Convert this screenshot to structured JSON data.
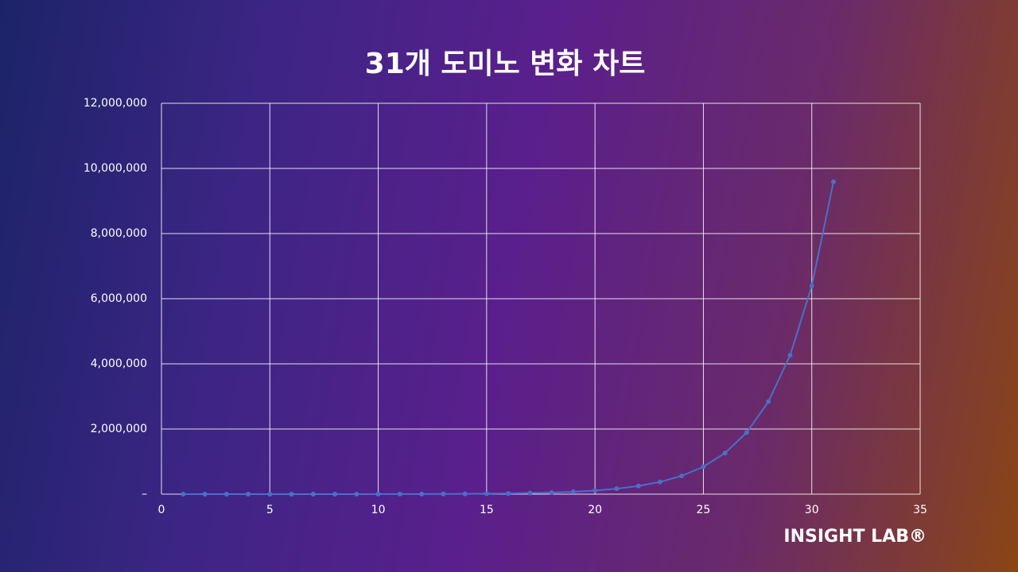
{
  "chart_data": {
    "type": "line",
    "title": "31개 도미노 변화 차트",
    "x": [
      1,
      2,
      3,
      4,
      5,
      6,
      7,
      8,
      9,
      10,
      11,
      12,
      13,
      14,
      15,
      16,
      17,
      18,
      19,
      20,
      21,
      22,
      23,
      24,
      25,
      26,
      27,
      28,
      29,
      30,
      31
    ],
    "series": [
      {
        "color": "#4a6fc9",
        "values": [
          50,
          75,
          113,
          169,
          253,
          380,
          570,
          854,
          1281,
          1922,
          2883,
          4325,
          6487,
          9731,
          14596,
          21894,
          32841,
          49262,
          73893,
          110840,
          166260,
          249390,
          374085,
          561128,
          841692,
          1262538,
          1893807,
          2840710,
          4261065,
          6391598,
          9587397
        ]
      }
    ],
    "xlim": [
      0,
      35
    ],
    "xticks": [
      0,
      5,
      10,
      15,
      20,
      25,
      30,
      35
    ],
    "ylim": [
      0,
      12000000
    ],
    "yticks": [
      {
        "value": 0,
        "label": "–"
      },
      {
        "value": 2000000,
        "label": "2,000,000"
      },
      {
        "value": 4000000,
        "label": "4,000,000"
      },
      {
        "value": 6000000,
        "label": "6,000,000"
      },
      {
        "value": 8000000,
        "label": "8,000,000"
      },
      {
        "value": 10000000,
        "label": "10,000,000"
      },
      {
        "value": 12000000,
        "label": "12,000,000"
      }
    ],
    "grid": true,
    "brand": "INSIGHT LAB®"
  }
}
